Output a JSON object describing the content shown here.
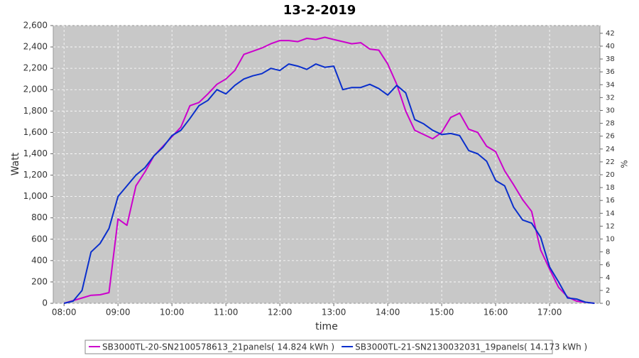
{
  "chart_data": {
    "type": "line",
    "title": "13-2-2019",
    "xlabel": "time",
    "ylabel": "Watt",
    "y2label": "%",
    "x": [
      "08:00",
      "08:10",
      "08:20",
      "08:30",
      "08:40",
      "08:50",
      "09:00",
      "09:10",
      "09:20",
      "09:30",
      "09:40",
      "09:50",
      "10:00",
      "10:10",
      "10:20",
      "10:30",
      "10:40",
      "10:50",
      "11:00",
      "11:10",
      "11:20",
      "11:30",
      "11:40",
      "11:50",
      "12:00",
      "12:10",
      "12:20",
      "12:30",
      "12:40",
      "12:50",
      "13:00",
      "13:10",
      "13:20",
      "13:30",
      "13:40",
      "13:50",
      "14:00",
      "14:10",
      "14:20",
      "14:30",
      "14:40",
      "14:50",
      "15:00",
      "15:10",
      "15:20",
      "15:30",
      "15:40",
      "15:50",
      "16:00",
      "16:10",
      "16:20",
      "16:30",
      "16:40",
      "16:50",
      "17:00",
      "17:10",
      "17:20",
      "17:30",
      "17:40",
      "17:50"
    ],
    "series": [
      {
        "name": "SB3000TL-20-SN2100578613_21panels( 14.824 kWh )",
        "color": "#cc00cc",
        "values": [
          0,
          25,
          50,
          75,
          80,
          100,
          790,
          730,
          1100,
          1230,
          1380,
          1470,
          1560,
          1650,
          1850,
          1880,
          1960,
          2050,
          2100,
          2180,
          2330,
          2360,
          2390,
          2430,
          2460,
          2460,
          2450,
          2480,
          2470,
          2490,
          2470,
          2450,
          2430,
          2440,
          2380,
          2370,
          2240,
          2050,
          1800,
          1620,
          1580,
          1540,
          1600,
          1740,
          1780,
          1630,
          1600,
          1470,
          1420,
          1240,
          1110,
          970,
          860,
          500,
          320,
          150,
          60,
          20,
          10,
          0
        ]
      },
      {
        "name": "SB3000TL-21-SN2130032031_19panels( 14.173 kWh )",
        "color": "#0a2fcc",
        "values": [
          0,
          20,
          120,
          480,
          560,
          700,
          1000,
          1100,
          1200,
          1270,
          1380,
          1460,
          1570,
          1620,
          1730,
          1850,
          1900,
          2000,
          1960,
          2040,
          2100,
          2130,
          2150,
          2200,
          2180,
          2240,
          2220,
          2190,
          2240,
          2210,
          2220,
          2000,
          2020,
          2020,
          2050,
          2010,
          1950,
          2040,
          1970,
          1720,
          1680,
          1620,
          1580,
          1590,
          1570,
          1430,
          1400,
          1330,
          1150,
          1100,
          900,
          780,
          750,
          620,
          340,
          200,
          50,
          40,
          10,
          0
        ]
      }
    ],
    "xlim": [
      "07:48",
      "17:56"
    ],
    "xticks": [
      "08:00",
      "09:00",
      "10:00",
      "11:00",
      "12:00",
      "13:00",
      "14:00",
      "15:00",
      "16:00",
      "17:00"
    ],
    "ylim": [
      0,
      2600
    ],
    "yticks": [
      {
        "value": 0,
        "label": "0"
      },
      {
        "value": 200,
        "label": "200"
      },
      {
        "value": 400,
        "label": "400"
      },
      {
        "value": 600,
        "label": "600"
      },
      {
        "value": 800,
        "label": "800"
      },
      {
        "value": 1000,
        "label": "1,000"
      },
      {
        "value": 1200,
        "label": "1,200"
      },
      {
        "value": 1400,
        "label": "1,400"
      },
      {
        "value": 1600,
        "label": "1,600"
      },
      {
        "value": 1800,
        "label": "1,800"
      },
      {
        "value": 2000,
        "label": "2,000"
      },
      {
        "value": 2200,
        "label": "2,200"
      },
      {
        "value": 2400,
        "label": "2,400"
      },
      {
        "value": 2600,
        "label": "2,600"
      }
    ],
    "y2lim": [
      0,
      43.2
    ],
    "y2ticks": [
      0,
      2,
      4,
      6,
      8,
      10,
      12,
      14,
      16,
      18,
      20,
      22,
      24,
      26,
      28,
      30,
      32,
      34,
      36,
      38,
      40,
      42
    ],
    "grid": true,
    "legend": "bottom"
  }
}
